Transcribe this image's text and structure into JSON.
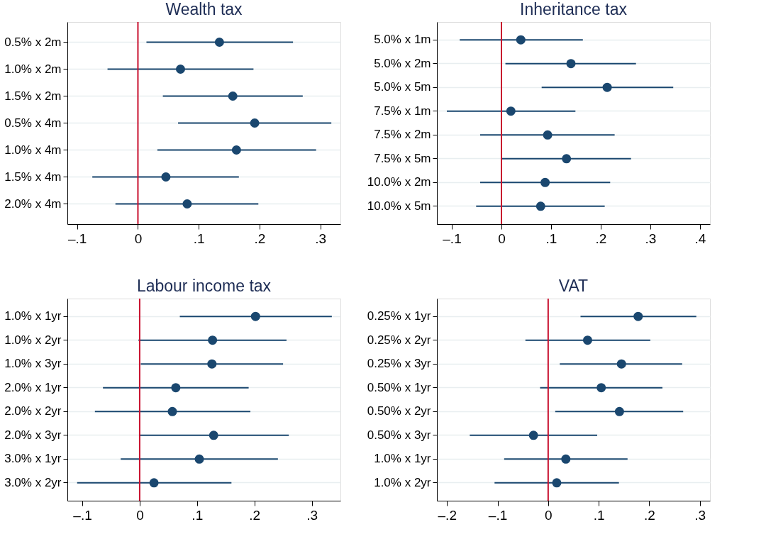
{
  "chart_data": [
    {
      "type": "scatter",
      "title": "Wealth tax",
      "orientation": "horizontal",
      "color": "#1a476f",
      "marker": "circle",
      "grid": "y",
      "categories": [
        "0.5% x 2m",
        "1.0% x 2m",
        "1.5% x 2m",
        "0.5% x 4m",
        "1.0% x 4m",
        "1.5% x 4m",
        "2.0% x 4m"
      ],
      "values": [
        0.134,
        0.07,
        0.156,
        0.192,
        0.162,
        0.046,
        0.081
      ],
      "errors": [
        [
          0.014,
          0.255
        ],
        [
          -0.05,
          0.19
        ],
        [
          0.041,
          0.271
        ],
        [
          0.066,
          0.318
        ],
        [
          0.032,
          0.293
        ],
        [
          -0.075,
          0.166
        ],
        [
          -0.037,
          0.198
        ]
      ],
      "xlim": [
        -0.116,
        0.333
      ],
      "xticks": [
        {
          "value": -0.1,
          "label": "–.1"
        },
        0,
        {
          "value": 0.1,
          "label": ".1"
        },
        {
          "value": 0.2,
          "label": ".2"
        },
        {
          "value": 0.3,
          "label": ".3"
        }
      ],
      "ref_lines": [
        {
          "axis": "x",
          "value": 0,
          "color": "#c8102e"
        }
      ]
    },
    {
      "type": "scatter",
      "title": "Inheritance tax",
      "orientation": "horizontal",
      "color": "#1a476f",
      "marker": "circle",
      "grid": "y",
      "categories": [
        "5.0% x 1m",
        "5.0% x 2m",
        "5.0% x 5m",
        "7.5% x 1m",
        "7.5% x 2m",
        "7.5% x 5m",
        "10.0% x 2m",
        "10.0% x 5m"
      ],
      "values": [
        0.039,
        0.14,
        0.213,
        0.019,
        0.093,
        0.131,
        0.088,
        0.079
      ],
      "errors": [
        [
          -0.084,
          0.164
        ],
        [
          0.008,
          0.271
        ],
        [
          0.081,
          0.346
        ],
        [
          -0.11,
          0.149
        ],
        [
          -0.043,
          0.228
        ],
        [
          0.001,
          0.261
        ],
        [
          -0.043,
          0.219
        ],
        [
          -0.051,
          0.208
        ]
      ],
      "xlim": [
        -0.13,
        0.42
      ],
      "xticks": [
        {
          "value": -0.1,
          "label": "–.1"
        },
        0,
        {
          "value": 0.1,
          "label": ".1"
        },
        {
          "value": 0.2,
          "label": ".2"
        },
        {
          "value": 0.3,
          "label": ".3"
        },
        {
          "value": 0.4,
          "label": ".4"
        }
      ],
      "ref_lines": [
        {
          "axis": "x",
          "value": 0,
          "color": "#c8102e"
        }
      ]
    },
    {
      "type": "scatter",
      "title": "Labour income tax",
      "orientation": "horizontal",
      "color": "#1a476f",
      "marker": "circle",
      "grid": "y",
      "categories": [
        "1.0% x 1yr",
        "1.0% x 2yr",
        "1.0% x 3yr",
        "2.0% x 1yr",
        "2.0% x 2yr",
        "2.0% x 3yr",
        "3.0% x 1yr",
        "3.0% x 2yr"
      ],
      "values": [
        0.202,
        0.127,
        0.126,
        0.063,
        0.057,
        0.129,
        0.104,
        0.025
      ],
      "errors": [
        [
          0.07,
          0.335
        ],
        [
          -0.002,
          0.256
        ],
        [
          0.002,
          0.25
        ],
        [
          -0.064,
          0.19
        ],
        [
          -0.078,
          0.193
        ],
        [
          -0.001,
          0.26
        ],
        [
          -0.033,
          0.241
        ],
        [
          -0.109,
          0.16
        ]
      ],
      "xlim": [
        -0.126,
        0.35
      ],
      "xticks": [
        {
          "value": -0.1,
          "label": "–.1"
        },
        0,
        {
          "value": 0.1,
          "label": ".1"
        },
        {
          "value": 0.2,
          "label": ".2"
        },
        {
          "value": 0.3,
          "label": ".3"
        }
      ],
      "ref_lines": [
        {
          "axis": "x",
          "value": 0,
          "color": "#c8102e"
        }
      ]
    },
    {
      "type": "scatter",
      "title": "VAT",
      "orientation": "horizontal",
      "color": "#1a476f",
      "marker": "circle",
      "grid": "y",
      "categories": [
        "0.25% x 1yr",
        "0.25% x 2yr",
        "0.25% x 3yr",
        "0.50% x 1yr",
        "0.50% x 2yr",
        "0.50% x 3yr",
        "1.0% x 1yr",
        "1.0% x 2yr"
      ],
      "values": [
        0.178,
        0.078,
        0.145,
        0.105,
        0.141,
        -0.029,
        0.035,
        0.017
      ],
      "errors": [
        [
          0.064,
          0.293
        ],
        [
          -0.045,
          0.202
        ],
        [
          0.023,
          0.265
        ],
        [
          -0.016,
          0.226
        ],
        [
          0.014,
          0.267
        ],
        [
          -0.155,
          0.097
        ],
        [
          -0.087,
          0.157
        ],
        [
          -0.106,
          0.14
        ]
      ],
      "xlim": [
        -0.22,
        0.32
      ],
      "xticks": [
        {
          "value": -0.2,
          "label": "–.2"
        },
        {
          "value": -0.1,
          "label": "–.1"
        },
        0,
        {
          "value": 0.1,
          "label": ".1"
        },
        {
          "value": 0.2,
          "label": ".2"
        },
        {
          "value": 0.3,
          "label": ".3"
        }
      ],
      "ref_lines": [
        {
          "axis": "x",
          "value": 0,
          "color": "#c8102e"
        }
      ]
    }
  ]
}
